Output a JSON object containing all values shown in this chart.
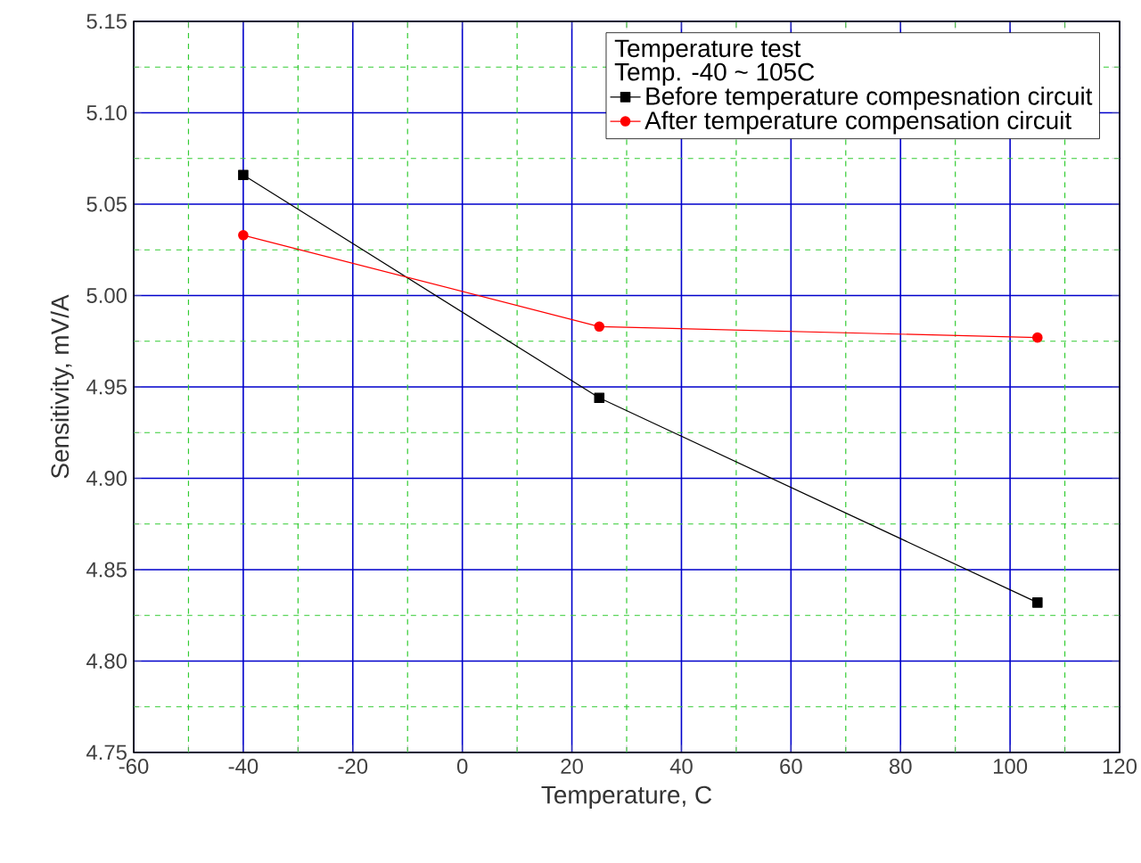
{
  "chart_data": {
    "type": "line",
    "xlabel": "Temperature, C",
    "ylabel": "Sensitivity, mV/A",
    "legend_title": "Temperature test",
    "annotations": [
      "Temp. -40 ~ 105C"
    ],
    "x": [
      -40,
      25,
      105
    ],
    "series": [
      {
        "name": "Before temperature compesnation circuit",
        "color": "#000000",
        "marker": "square",
        "values": [
          5.066,
          4.944,
          4.832
        ]
      },
      {
        "name": "After temperature compensation circuit",
        "color": "#ff0000",
        "marker": "circle",
        "values": [
          5.033,
          4.983,
          4.977
        ]
      }
    ],
    "xlim": [
      -60,
      120
    ],
    "ylim": [
      4.75,
      5.15
    ],
    "xticks": [
      -60,
      {
        "value": -50,
        "label": null
      },
      -40,
      {
        "value": -30,
        "label": null
      },
      -20,
      {
        "value": -10,
        "label": null
      },
      0,
      {
        "value": 10,
        "label": null
      },
      20,
      {
        "value": 30,
        "label": null
      },
      40,
      {
        "value": 50,
        "label": null
      },
      60,
      {
        "value": 70,
        "label": null
      },
      80,
      {
        "value": 90,
        "label": null
      },
      100,
      {
        "value": 110,
        "label": null
      },
      120
    ],
    "yticks": [
      {
        "value": 4.75,
        "label": "4.75"
      },
      {
        "value": 4.775,
        "label": null
      },
      {
        "value": 4.8,
        "label": "4.80"
      },
      {
        "value": 4.825,
        "label": null
      },
      {
        "value": 4.85,
        "label": "4.85"
      },
      {
        "value": 4.875,
        "label": null
      },
      {
        "value": 4.9,
        "label": "4.90"
      },
      {
        "value": 4.925,
        "label": null
      },
      {
        "value": 4.95,
        "label": "4.95"
      },
      {
        "value": 4.975,
        "label": null
      },
      {
        "value": 5.0,
        "label": "5.00"
      },
      {
        "value": 5.025,
        "label": null
      },
      {
        "value": 5.05,
        "label": "5.05"
      },
      {
        "value": 5.075,
        "label": null
      },
      {
        "value": 5.1,
        "label": "5.10"
      },
      {
        "value": 5.125,
        "label": null
      },
      {
        "value": 5.15,
        "label": "5.15"
      }
    ],
    "grid": true,
    "legend": "top right",
    "line_style": "solid"
  }
}
